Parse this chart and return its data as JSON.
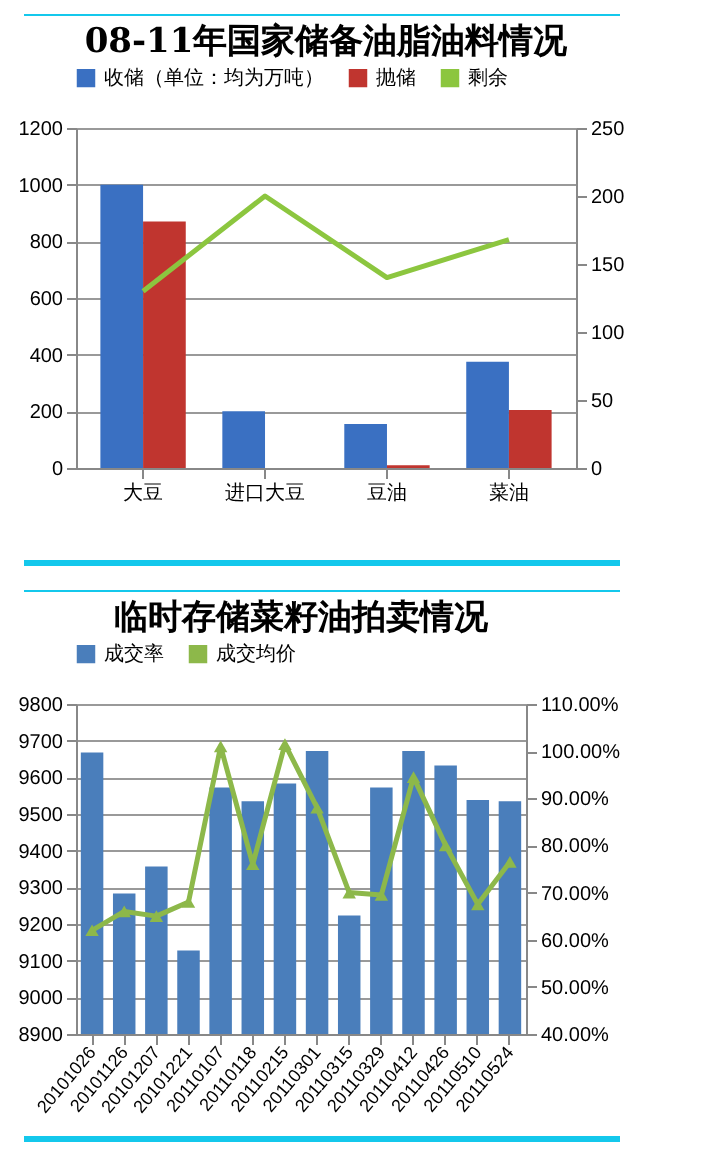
{
  "chart_data": [
    {
      "type": "bar",
      "title": "08-11年国家储备油脂油料情况",
      "categories": [
        "大豆",
        "进口大豆",
        "豆油",
        "菜油"
      ],
      "ylim": [
        0,
        1200
      ],
      "yticks": [
        0,
        200,
        400,
        600,
        800,
        1000,
        1200
      ],
      "y2lim": [
        0,
        250
      ],
      "y2ticks": [
        0,
        50,
        100,
        150,
        200,
        250
      ],
      "grid": "y",
      "legend": "top",
      "series": [
        {
          "name": "收储（单位：均为万吨）",
          "color": "#3a70c2",
          "values": [
            1000,
            200,
            155,
            375
          ]
        },
        {
          "name": "抛储",
          "color": "#c0352f",
          "values": [
            870,
            null,
            10,
            205
          ]
        },
        {
          "name": "剩余",
          "type": "line",
          "axis": "y2",
          "color": "#8cc63f",
          "values": [
            130,
            200,
            140,
            168
          ]
        }
      ]
    },
    {
      "type": "bar",
      "title": "临时存储菜籽油拍卖情况",
      "categories": [
        "20101026",
        "20101126",
        "20101207",
        "20101221",
        "20110107",
        "20110118",
        "20110215",
        "20110301",
        "20110315",
        "20110329",
        "20110412",
        "20110426",
        "20110510",
        "20110524"
      ],
      "ylim": [
        8900,
        9800
      ],
      "yticks": [
        8900,
        9000,
        9100,
        9200,
        9300,
        9400,
        9500,
        9600,
        9700,
        9800
      ],
      "y2lim": [
        40,
        110
      ],
      "y2ticks": [
        {
          "value": 40,
          "label": "40.00%"
        },
        {
          "value": 50,
          "label": "50.00%"
        },
        {
          "value": 60,
          "label": "60.00%"
        },
        {
          "value": 70,
          "label": "70.00%"
        },
        {
          "value": 80,
          "label": "80.00%"
        },
        {
          "value": 90,
          "label": "90.00%"
        },
        {
          "value": 100,
          "label": "100.00%"
        },
        {
          "value": 110,
          "label": "110.00%"
        }
      ],
      "grid": "y",
      "legend": "top left",
      "marker": "triangle",
      "series": [
        {
          "name": "成交率",
          "color": "#4a7ebb",
          "values": [
            9668,
            9283,
            9357,
            9128,
            9572,
            9535,
            9583,
            9672,
            9223,
            9572,
            9672,
            9632,
            9538,
            9535
          ]
        },
        {
          "name": "成交均价",
          "type": "line",
          "axis": "y2",
          "color": "#8db84a",
          "values": [
            62,
            66,
            65,
            68,
            101,
            76,
            101.5,
            88,
            70,
            69.5,
            94.5,
            80,
            67.5,
            76.5
          ]
        }
      ]
    }
  ]
}
